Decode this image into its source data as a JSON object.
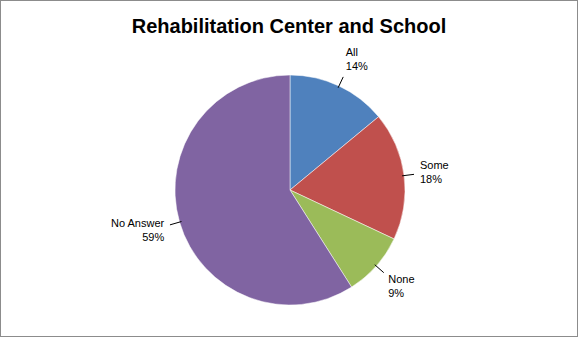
{
  "chart_data": {
    "type": "pie",
    "title": "Rehabilitation Center and School",
    "categories": [
      "All",
      "Some",
      "None",
      "No Answer"
    ],
    "values": [
      14,
      18,
      9,
      59
    ],
    "value_labels": [
      "14%",
      "18%",
      "9%",
      "59%"
    ],
    "colors": [
      "#4f81bd",
      "#c0504d",
      "#9bbb59",
      "#8064a2"
    ],
    "data_labels": true
  }
}
